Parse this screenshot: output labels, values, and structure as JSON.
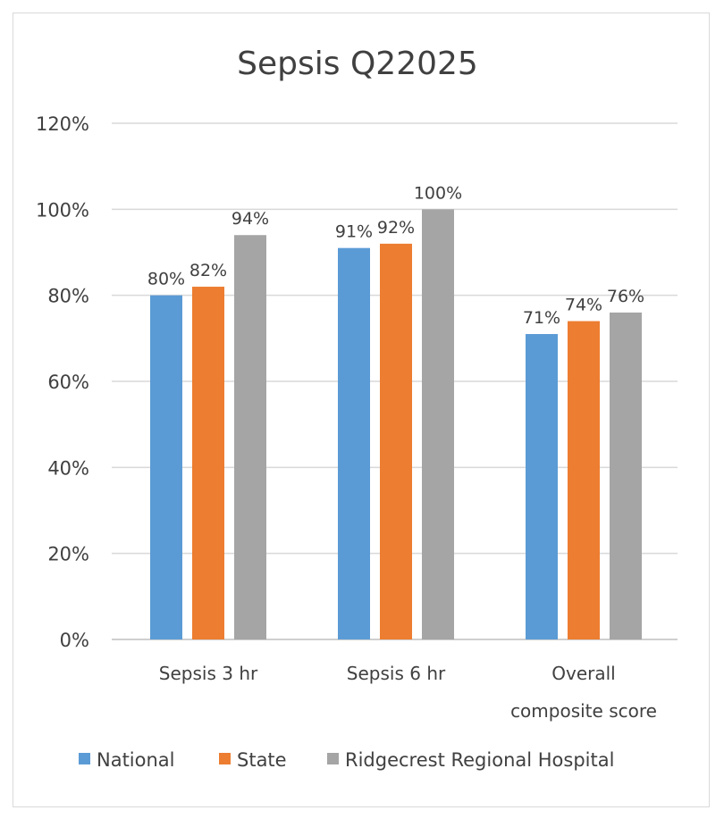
{
  "chart_data": {
    "type": "bar",
    "title": "Sepsis Q22025",
    "categories": [
      [
        "Sepsis 3 hr"
      ],
      [
        "Sepsis 6 hr"
      ],
      [
        "Overall",
        "composite score"
      ]
    ],
    "series": [
      {
        "name": "National",
        "color": "#5B9BD5",
        "values": [
          80,
          91,
          71
        ],
        "labels": [
          "80%",
          "91%",
          "71%"
        ]
      },
      {
        "name": "State",
        "color": "#ED7D31",
        "values": [
          82,
          92,
          74
        ],
        "labels": [
          "82%",
          "92%",
          "74%"
        ]
      },
      {
        "name": "Ridgecrest Regional Hospital",
        "color": "#A5A5A5",
        "values": [
          94,
          100,
          76
        ],
        "labels": [
          "94%",
          "100%",
          "76%"
        ]
      }
    ],
    "ylim": [
      0,
      120
    ],
    "yticks": [
      0,
      20,
      40,
      60,
      80,
      100,
      120
    ],
    "ytick_labels": [
      "0%",
      "20%",
      "40%",
      "60%",
      "80%",
      "100%",
      "120%"
    ],
    "grid": true,
    "legend_position": "bottom"
  }
}
